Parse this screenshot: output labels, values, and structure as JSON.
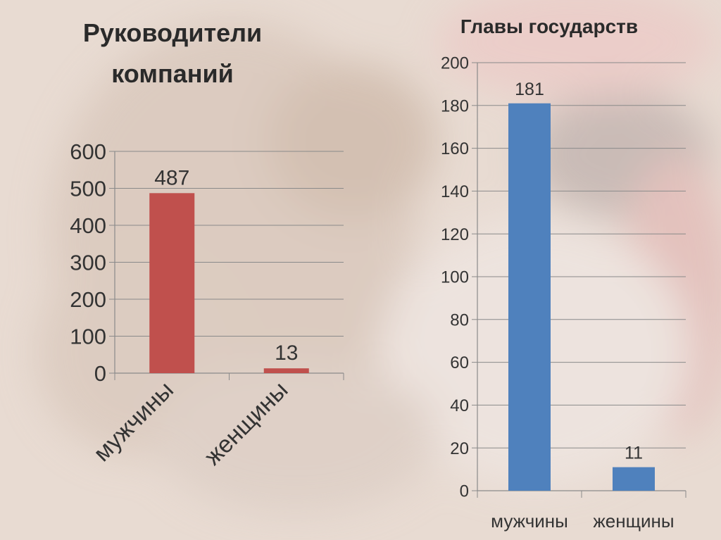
{
  "colors": {
    "left_bar": "#c0504d",
    "right_bar": "#4f81bd",
    "text": "#333333",
    "grid": "#8a8a8a"
  },
  "chart_data": [
    {
      "type": "bar",
      "title": "Руководители компаний",
      "categories": [
        "мужчины",
        "женщины"
      ],
      "values": [
        487,
        13
      ],
      "data_labels": [
        "487",
        "13"
      ],
      "ylim": [
        0,
        600
      ],
      "yticks": [
        0,
        100,
        200,
        300,
        400,
        500,
        600
      ],
      "grid": true,
      "legend": "none",
      "x_label_rotation": "rotated"
    },
    {
      "type": "bar",
      "title": "Главы государств",
      "categories": [
        "мужчины",
        "женщины"
      ],
      "values": [
        181,
        11
      ],
      "data_labels": [
        "181",
        "11"
      ],
      "ylim": [
        0,
        200
      ],
      "yticks": [
        0,
        20,
        40,
        60,
        80,
        100,
        120,
        140,
        160,
        180,
        200
      ],
      "grid": true,
      "legend": "none",
      "x_label_rotation": "horizontal"
    }
  ]
}
